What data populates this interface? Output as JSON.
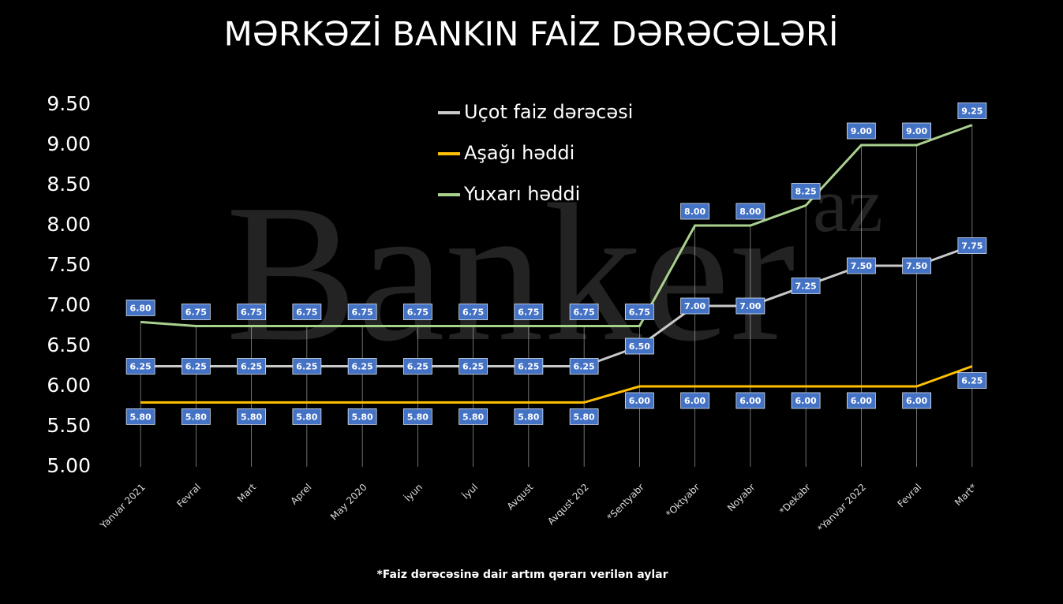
{
  "chart_data": {
    "type": "line",
    "title": "MƏRKƏZİ BANKIN FAİZ DƏRƏCƏLƏRİ",
    "note": "*Faiz dərəcəsinə dair artım qərarı verilən aylar",
    "watermark": [
      "Banker",
      "az"
    ],
    "categories": [
      "Yanvar 2021",
      "Fevral",
      "Mart",
      "Aprel",
      "May 2020",
      "İyun",
      "İyul",
      "Avqust",
      "Avqust 202",
      "*Sentyabr",
      "*Oktyabr",
      "Noyabr",
      "*Dekabr",
      "*Yanvar 2022",
      "Fevral",
      "Mart*"
    ],
    "series": [
      {
        "name": "Uçot faiz dərəcəsi",
        "color": "#c9c9c9",
        "values": [
          6.25,
          6.25,
          6.25,
          6.25,
          6.25,
          6.25,
          6.25,
          6.25,
          6.25,
          6.5,
          7,
          7,
          7.25,
          7.5,
          7.5,
          7.75
        ],
        "value_labels": [
          "6.25",
          "6.25",
          "6.25",
          "6.25",
          "6.25",
          "6.25",
          "6.25",
          "6.25",
          "6.25",
          "6.50",
          "7.00",
          "7.00",
          "7.25",
          "7.50",
          "7.50",
          "7.75"
        ]
      },
      {
        "name": "Aşağı həddi",
        "color": "#ffc000",
        "values": [
          5.8,
          5.8,
          5.8,
          5.8,
          5.8,
          5.8,
          5.8,
          5.8,
          5.8,
          6,
          6,
          6,
          6,
          6,
          6,
          6.25
        ],
        "value_labels": [
          "5.80",
          "5.80",
          "5.80",
          "5.80",
          "5.80",
          "5.80",
          "5.80",
          "5.80",
          "5.80",
          "6.00",
          "6.00",
          "6.00",
          "6.00",
          "6.00",
          "6.00",
          "6.25"
        ]
      },
      {
        "name": "Yuxarı həddi",
        "color": "#a9d18e",
        "values": [
          6.8,
          6.75,
          6.75,
          6.75,
          6.75,
          6.75,
          6.75,
          6.75,
          6.75,
          6.75,
          8,
          8,
          8.25,
          9,
          9,
          9.25
        ],
        "value_labels": [
          "6.80",
          "6.75",
          "6.75",
          "6.75",
          "6.75",
          "6.75",
          "6.75",
          "6.75",
          "6.75",
          "6.75",
          "8.00",
          "8.00",
          "8.25",
          "9.00",
          "9.00",
          "9.25"
        ]
      }
    ],
    "ylim": [
      5,
      9.5
    ],
    "yticks": [
      {
        "value": 5,
        "label": "5.00"
      },
      {
        "value": 5.5,
        "label": "5.50"
      },
      {
        "value": 6,
        "label": "6.00"
      },
      {
        "value": 6.5,
        "label": "6.50"
      },
      {
        "value": 7,
        "label": "7.00"
      },
      {
        "value": 7.5,
        "label": "7.50"
      },
      {
        "value": 8,
        "label": "8.00"
      },
      {
        "value": 8.5,
        "label": "8.50"
      },
      {
        "value": 9,
        "label": "9.00"
      },
      {
        "value": 9.5,
        "label": "9.50"
      }
    ]
  }
}
